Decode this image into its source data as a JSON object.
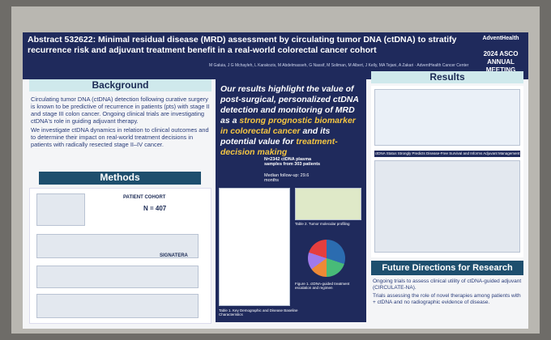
{
  "header": {
    "abstract_id": "Abstract 532622",
    "title": "Minimal residual disease (MRD) assessment by circulating tumor DNA (ctDNA) to stratify recurrence risk and adjuvant treatment benefit in a real-world colorectal cancer cohort",
    "authors": "M Galuia, J G Mchayleh, L Karakozis, M Abdelmasseh, G Nassif, M Soliman, M Albert, J Kelly, MA Tejani, A Zakari · AdventHealth Cancer Center",
    "logo": "AdventHealth",
    "meeting": "2024 ASCO ANNUAL MEETING"
  },
  "background": {
    "title": "Background",
    "bullets": [
      "Circulating tumor DNA (ctDNA) detection following curative surgery is known to be predictive of recurrence in patients (pts) with stage II and stage III colon cancer. Ongoing clinical trials are investigating ctDNA's role in guiding adjuvant therapy.",
      "We investigate ctDNA dynamics in relation to clinical outcomes and to determine their impact on real-world treatment decisions in patients with radically resected stage II–IV cancer."
    ]
  },
  "methods": {
    "title": "Methods",
    "cohort_label": "PATIENT COHORT",
    "cohort_n": "N = 407",
    "assay": "SIGNATERA"
  },
  "center": {
    "highlight": [
      "Our results highlight the value of post-surgical, personalized ctDNA detection and monitoring of MRD as a ",
      "strong prognostic biomarker in colorectal cancer",
      " and its potential value for ",
      "treatment-decision making"
    ],
    "samples": "N=2342 ctDNA plasma samples from 303 patients",
    "followup": "Median follow-up: 29.6 months",
    "table1": "Table 1. Key Demographic and Disease Baseline Characteristics",
    "table2": "Table 2. Tumor molecular profiling",
    "figure1": "Figure 1. ctDNA-guided treatment escalation and regimen"
  },
  "results": {
    "title": "Results",
    "subtitle": "ctDNA Status Strongly Predicts Disease-Free Survival and Informs Adjuvant Management"
  },
  "future": {
    "title": "Future Directions for Research",
    "bullets": [
      "Ongoing trials to assess clinical utility of ctDNA-guided adjuvant (CIRCULATE-NA).",
      "Trials assessing the role of novel therapies among patients with + ctDNA and no radiographic evidence of disease."
    ]
  }
}
